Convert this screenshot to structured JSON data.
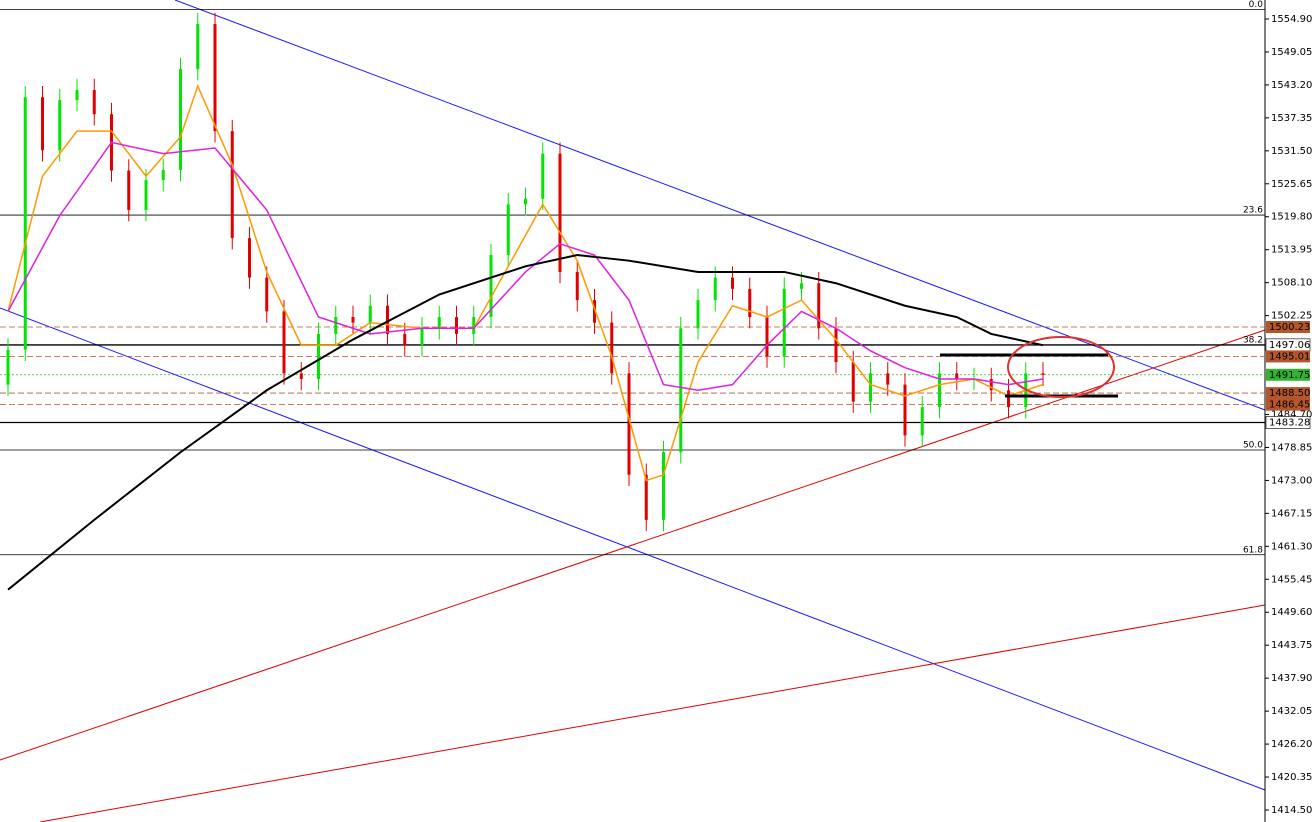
{
  "chart_data": {
    "type": "candlestick",
    "ylim": [
      1412.37,
      1558.27
    ],
    "yticks": [
      {
        "value": 1554.9,
        "label": "1554.90"
      },
      1549.05,
      {
        "value": 1543.2,
        "label": "1543.20"
      },
      1537.35,
      {
        "value": 1531.5,
        "label": "1531.50"
      },
      1525.65,
      {
        "value": 1519.8,
        "label": "1519.80"
      },
      1513.95,
      {
        "value": 1508.1,
        "label": "1508.10"
      },
      1502.25,
      {
        "value": 1484.7,
        "label": "1484.70"
      },
      1478.85,
      {
        "value": 1473.0,
        "label": "1473.00"
      },
      1467.15,
      {
        "value": 1461.3,
        "label": "1461.30"
      },
      1455.45,
      {
        "value": 1449.6,
        "label": "1449.60"
      },
      1443.75,
      {
        "value": 1437.9,
        "label": "1437.90"
      },
      1432.05,
      {
        "value": 1426.2,
        "label": "1426.20"
      },
      1420.35,
      {
        "value": 1414.5,
        "label": "1414.50"
      }
    ],
    "candles": {
      "up_color": "#00e600",
      "down_color": "#e00000",
      "open": [
        1490,
        1496.2,
        1541,
        1531.6,
        1540.5,
        1542.3,
        1538,
        1528,
        1521,
        1526.3,
        1528.1,
        1546,
        1554,
        1535,
        1516,
        1509,
        1503,
        1492,
        1491,
        1499,
        1502,
        1501,
        1504,
        1499,
        1497,
        1500,
        1502,
        1499,
        1502,
        1513,
        1522,
        1523,
        1531,
        1510,
        1505,
        1501,
        1492,
        1474,
        1466,
        1478,
        1500,
        1505,
        1509,
        1507,
        1502,
        1495,
        1507,
        1508,
        1500,
        1494,
        1487,
        1492,
        1490,
        1481,
        1486,
        1492,
        1491,
        1491,
        1489,
        1486,
        1492
      ],
      "high": [
        1498.2,
        1543,
        1543,
        1542.5,
        1544.3,
        1544.3,
        1540,
        1530,
        1528.3,
        1530.1,
        1548,
        1556,
        1556,
        1537,
        1518,
        1511,
        1505,
        1494,
        1501,
        1504,
        1504,
        1506,
        1506,
        1501,
        1502,
        1504,
        1504,
        1504,
        1515,
        1524,
        1525,
        1533,
        1533,
        1512,
        1507,
        1503,
        1494,
        1476,
        1480,
        1502,
        1507,
        1511,
        1511,
        1509,
        1504,
        1509,
        1510,
        1510,
        1502,
        1496,
        1494,
        1494,
        1492,
        1488,
        1494,
        1494,
        1493,
        1493,
        1491,
        1494,
        1494
      ],
      "low": [
        1488,
        1494.2,
        1529.6,
        1529.6,
        1538.5,
        1536,
        1526,
        1519,
        1519,
        1524.3,
        1526.1,
        1544,
        1533,
        1514,
        1507,
        1501,
        1490,
        1489,
        1489,
        1497,
        1499,
        1499,
        1497,
        1495,
        1495,
        1498,
        1497,
        1497,
        1500,
        1511,
        1520,
        1521,
        1508,
        1503,
        1499,
        1490,
        1472,
        1464,
        1464,
        1476,
        1498,
        1503,
        1505,
        1500,
        1493,
        1493,
        1505,
        1498,
        1492,
        1485,
        1485,
        1488,
        1479,
        1479,
        1484,
        1489,
        1489,
        1487,
        1484,
        1484,
        1489.75
      ],
      "close": [
        1496.2,
        1541,
        1531.6,
        1540.5,
        1542.3,
        1538,
        1528,
        1521,
        1526.3,
        1528.1,
        1546,
        1554,
        1535,
        1516,
        1509,
        1503,
        1492,
        1491,
        1499,
        1502,
        1501,
        1504,
        1499,
        1497,
        1500,
        1502,
        1499,
        1502,
        1513,
        1522,
        1523,
        1531,
        1510,
        1505,
        1501,
        1492,
        1474,
        1466,
        1478,
        1500,
        1505,
        1509,
        1507,
        1502,
        1495,
        1507,
        1508,
        1500,
        1494,
        1487,
        1492,
        1490,
        1481,
        1486,
        1492,
        1491,
        1491,
        1489,
        1486,
        1492,
        1491.75
      ]
    },
    "series": [
      {
        "color": "#ff9900",
        "x": [
          0,
          2,
          4,
          6,
          8,
          10,
          11,
          13,
          15,
          17,
          19,
          21,
          24,
          27,
          29,
          31,
          33,
          35,
          37,
          38,
          40,
          42,
          44,
          46,
          48,
          50,
          52,
          54,
          56,
          58,
          60
        ],
        "values": [
          1503,
          1527,
          1535,
          1535,
          1527,
          1534,
          1543,
          1529,
          1510,
          1497,
          1497,
          1501,
          1500,
          1500,
          1511,
          1522,
          1512,
          1495,
          1473,
          1474,
          1494,
          1504,
          1502,
          1505,
          1498,
          1490,
          1488,
          1490,
          1491,
          1488,
          1490
        ]
      },
      {
        "color": "#e020e0",
        "x": [
          0,
          3,
          6,
          9,
          12,
          15,
          18,
          21,
          24,
          27,
          30,
          32,
          34,
          36,
          38,
          40,
          42,
          44,
          46,
          48,
          50,
          52,
          54,
          56,
          58,
          60
        ],
        "values": [
          1503,
          1520,
          1533,
          1531,
          1532,
          1521,
          1502,
          1499,
          1500,
          1500,
          1510,
          1515,
          1513,
          1505,
          1490,
          1489,
          1490,
          1497,
          1503,
          1500,
          1496,
          1493,
          1491,
          1491,
          1490,
          1491
        ]
      },
      {
        "color": "#000000",
        "x": [
          0,
          5,
          10,
          15,
          20,
          25,
          30,
          33,
          36,
          40,
          45,
          48,
          52,
          55,
          57,
          60
        ],
        "values": [
          1453.6,
          1466,
          1478,
          1489,
          1498,
          1506,
          1511,
          1513,
          1512,
          1510,
          1510,
          1508,
          1504,
          1502,
          1499,
          1497
        ]
      }
    ],
    "levels": [
      {
        "price": 1500.23,
        "color": "#b4562c",
        "style": "dash"
      },
      {
        "price": 1497.06,
        "color": "#000000",
        "style": "solid"
      },
      {
        "price": 1495.01,
        "color": "#b4562c",
        "style": "dash"
      },
      {
        "price": 1491.75,
        "color": "#32b432",
        "style": "dot"
      },
      {
        "price": {
          "value": 1488.5,
          "label": "1488.50"
        },
        "color": "#b4562c",
        "style": "dash"
      },
      {
        "price": 1486.45,
        "color": "#b4562c",
        "style": "dash"
      },
      {
        "price": 1483.28,
        "color": "#000000",
        "style": "solid"
      }
    ],
    "fib": [
      {
        "label": "0.0",
        "price": 1556.6
      },
      {
        "label": "23.6",
        "price": 1520.1
      },
      {
        "label": "38.2",
        "price": 1497.0
      },
      {
        "label": "50.0",
        "price": 1478.4
      },
      {
        "label": "61.8",
        "price": 1459.8
      }
    ]
  }
}
